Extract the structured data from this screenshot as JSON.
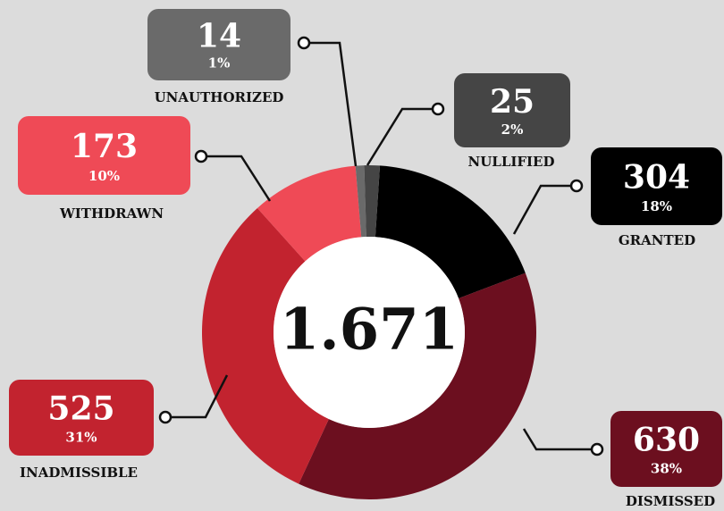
{
  "chart_data": {
    "type": "donut",
    "categories": [
      "GRANTED",
      "DISMISSED",
      "INADMISSIBLE",
      "WITHDRAWN",
      "UNAUTHORIZED",
      "NULLIFIED"
    ],
    "values": [
      304,
      630,
      525,
      173,
      14,
      25
    ],
    "percent_labels": [
      "18%",
      "38%",
      "31%",
      "10%",
      "1%",
      "2%"
    ],
    "colors": [
      "#000000",
      "#6c0f1f",
      "#c2232f",
      "#ef4a56",
      "#6a6a6a",
      "#454545"
    ],
    "total": {
      "value": 1671,
      "label": "1.671"
    }
  }
}
